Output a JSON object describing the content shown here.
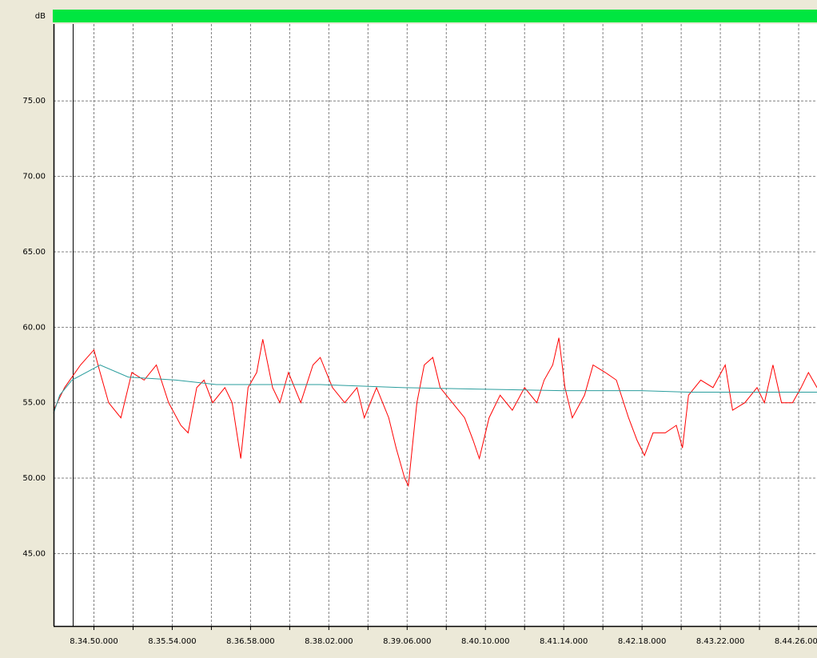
{
  "chart_data": {
    "type": "line",
    "ylabel": "dB",
    "ylim": [
      40.2,
      80.1
    ],
    "yticks": [
      {
        "value": 45,
        "label": "45.00"
      },
      {
        "value": 50,
        "label": "50.00"
      },
      {
        "value": 55,
        "label": "55.00"
      },
      {
        "value": 60,
        "label": "60.00"
      },
      {
        "value": 65,
        "label": "65.00"
      },
      {
        "value": 70,
        "label": "70.00"
      },
      {
        "value": 75,
        "label": "75.00"
      }
    ],
    "xlim": [
      30857,
      31481
    ],
    "xticks": [
      {
        "value": 30890,
        "label": "8.34.50.000"
      },
      {
        "value": 30954,
        "label": "8.35.54.000"
      },
      {
        "value": 31018,
        "label": "8.36.58.000"
      },
      {
        "value": 31082,
        "label": "8.38.02.000"
      },
      {
        "value": 31146,
        "label": "8.39.06.000"
      },
      {
        "value": 31210,
        "label": "8.40.10.000"
      },
      {
        "value": 31274,
        "label": "8.41.14.000"
      },
      {
        "value": 31338,
        "label": "8.42.18.000"
      },
      {
        "value": 31402,
        "label": "8.43.22.000"
      },
      {
        "value": 31466,
        "label": "8.44.26.000"
      }
    ],
    "x_gridlines": [
      30922,
      30986,
      31050,
      31114,
      31178,
      31242,
      31306,
      31370,
      31434
    ],
    "grid": true,
    "cursor_x": 30873,
    "series": [
      {
        "color": "#ff0000",
        "x": [
          30857,
          30866,
          30879,
          30890,
          30895,
          30902,
          30912,
          30921,
          30931,
          30941,
          30951,
          30961,
          30967,
          30974,
          30980,
          30987,
          30997,
          31003,
          31010,
          31016,
          31023,
          31028,
          31036,
          31042,
          31049,
          31059,
          31069,
          31075,
          31085,
          31095,
          31105,
          31111,
          31121,
          31131,
          31137,
          31144,
          31147,
          31154,
          31160,
          31167,
          31173,
          31183,
          31193,
          31200,
          31205,
          31213,
          31222,
          31232,
          31242,
          31252,
          31258,
          31265,
          31270,
          31275,
          31281,
          31291,
          31298,
          31308,
          31317,
          31327,
          31334,
          31340,
          31347,
          31357,
          31366,
          31371,
          31376,
          31386,
          31396,
          31406,
          31412,
          31422,
          31432,
          31438,
          31445,
          31452,
          31461,
          31468,
          31474,
          31481
        ],
        "values": [
          54.5,
          56,
          57.5,
          58.5,
          57,
          55,
          54,
          57,
          56.5,
          57.5,
          55,
          53.5,
          53,
          56,
          56.5,
          55,
          56,
          55,
          51.3,
          56,
          57,
          59.2,
          56,
          55,
          57,
          55,
          57.5,
          58,
          56,
          55,
          56,
          54,
          56,
          54,
          52,
          50,
          49.5,
          55,
          57.5,
          58,
          56,
          55,
          54,
          52.5,
          51.3,
          54,
          55.5,
          54.5,
          56,
          55,
          56.5,
          57.5,
          59.3,
          56,
          54,
          55.5,
          57.5,
          57,
          56.5,
          54,
          52.5,
          51.5,
          53,
          53,
          53.5,
          52,
          55.5,
          56.5,
          56,
          57.5,
          54.5,
          55,
          56,
          55,
          57.5,
          55,
          55,
          56,
          57,
          56
        ]
      },
      {
        "color": "#2a9d9d",
        "x": [
          30857,
          30862,
          30872,
          30895,
          30918,
          30957,
          30990,
          31029,
          31075,
          31141,
          31206,
          31272,
          31337,
          31376,
          31481
        ],
        "values": [
          54.3,
          55.5,
          56.5,
          57.5,
          56.7,
          56.5,
          56.2,
          56.2,
          56.2,
          56,
          55.9,
          55.8,
          55.8,
          55.7,
          55.7
        ]
      }
    ]
  }
}
